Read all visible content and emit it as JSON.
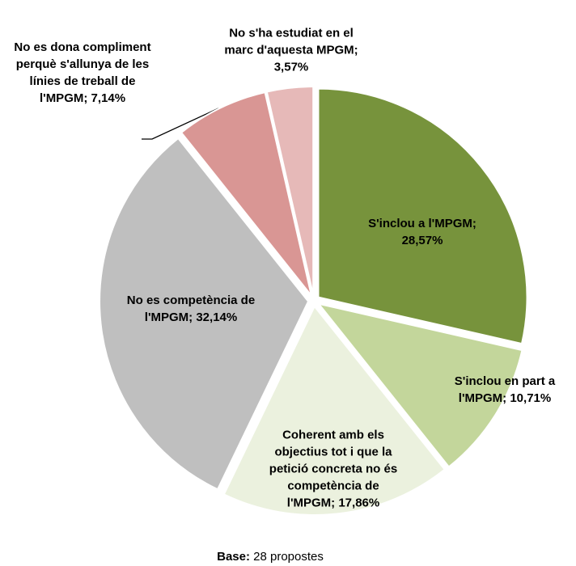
{
  "chart_data": {
    "type": "pie",
    "values": [
      28.57,
      10.71,
      17.86,
      32.14,
      7.14,
      3.57
    ],
    "value_labels": [
      "S'inclou a l'MPGM; 28,57%",
      "S'inclou en part a l'MPGM; 10,71%",
      "Coherent amb els objectius tot i que la petició concreta no és competència de l'MPGM; 17,86%",
      "No es competència de l'MPGM; 32,14%",
      "No es dona compliment perquè s'allunya de les línies de treball de l'MPGM; 7,14%",
      "No s'ha estudiat en el marc d'aquesta MPGM; 3,57%"
    ],
    "colors": [
      "#77933c",
      "#c3d69b",
      "#ebf1de",
      "#bfbfbf",
      "#d99694",
      "#e6b9b8"
    ],
    "footer": {
      "label": "Base:",
      "text": "28 propostes"
    }
  }
}
